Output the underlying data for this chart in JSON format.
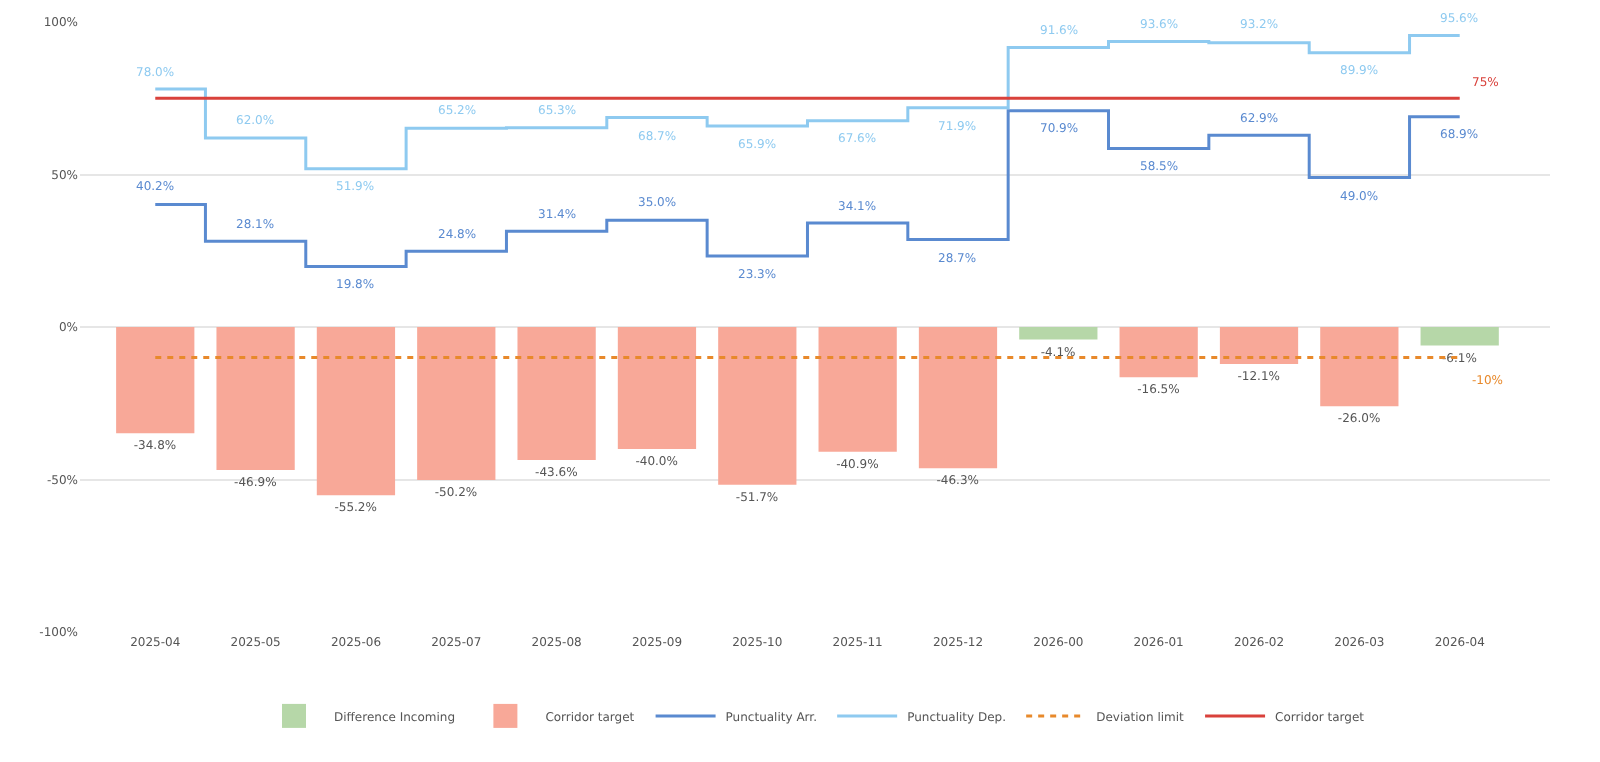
{
  "chart_data": {
    "type": "bar",
    "stacked": true,
    "categories": [
      "2025-04",
      "2025-05",
      "2025-06",
      "2025-07",
      "2025-08",
      "2025-09",
      "2025-10",
      "2025-11",
      "2025-12",
      "2026-00",
      "2026-01",
      "2026-02",
      "2026-03",
      "2026-04"
    ],
    "series": [
      {
        "name": "Difference Incoming",
        "color": "#b6d7a8",
        "values": [
          null,
          null,
          null,
          null,
          null,
          null,
          null,
          null,
          null,
          -4.1,
          null,
          null,
          null,
          -6.1
        ],
        "value_labels": [
          null,
          null,
          null,
          null,
          null,
          null,
          null,
          null,
          null,
          "-4.1%",
          null,
          null,
          null,
          "-6.1%"
        ]
      },
      {
        "name": "Corridor target",
        "color": "#f8a898",
        "values": [
          -34.8,
          -46.9,
          -55.2,
          -50.2,
          -43.6,
          -40.0,
          -51.7,
          -40.9,
          -46.3,
          null,
          -16.5,
          -12.1,
          -26.0,
          null
        ],
        "value_labels": [
          "-34.8%",
          "-46.9%",
          "-55.2%",
          "-50.2%",
          "-43.6%",
          "-40.0%",
          "-51.7%",
          "-40.9%",
          "-46.3%",
          null,
          "-16.5%",
          "-12.1%",
          "-26.0%",
          null
        ]
      },
      {
        "name": "Punctuality Arr.",
        "type": "step",
        "color": "#5a8ad0",
        "values": [
          40.2,
          28.1,
          19.8,
          24.8,
          31.4,
          35.0,
          23.3,
          34.1,
          28.7,
          70.9,
          58.5,
          62.9,
          49.0,
          68.9
        ],
        "value_labels": [
          "40.2%",
          "28.1%",
          "19.8%",
          "24.8%",
          "31.4%",
          "35.0%",
          "23.3%",
          "34.1%",
          "28.7%",
          "70.9%",
          "58.5%",
          "62.9%",
          "49.0%",
          "68.9%"
        ]
      },
      {
        "name": "Punctuality Dep.",
        "type": "step",
        "color": "#8ecaf0",
        "values": [
          78.0,
          62.0,
          51.9,
          65.2,
          65.3,
          68.7,
          65.9,
          67.6,
          71.9,
          91.6,
          93.6,
          93.2,
          89.9,
          95.6
        ],
        "value_labels": [
          "78.0%",
          "62.0%",
          "51.9%",
          "65.2%",
          "65.3%",
          "68.7%",
          "65.9%",
          "67.6%",
          "71.9%",
          "91.6%",
          "93.6%",
          "93.2%",
          "89.9%",
          "95.6%"
        ]
      },
      {
        "name": "Deviation limit",
        "type": "line",
        "color": "#e8892b",
        "line_style": "dotted",
        "values": [
          -10,
          -10,
          -10,
          -10,
          -10,
          -10,
          -10,
          -10,
          -10,
          -10,
          -10,
          -10,
          -10,
          -10
        ],
        "value_labels": [
          null,
          null,
          null,
          null,
          null,
          null,
          null,
          null,
          null,
          null,
          null,
          null,
          null,
          "-10%"
        ]
      },
      {
        "name": "Corridor target",
        "type": "line",
        "color": "#d9413b",
        "line_style": "solid",
        "values": [
          75,
          75,
          75,
          75,
          75,
          75,
          75,
          75,
          75,
          75,
          75,
          75,
          75,
          75
        ],
        "value_labels": [
          null,
          null,
          null,
          null,
          null,
          null,
          null,
          null,
          null,
          null,
          null,
          null,
          null,
          "75%"
        ]
      }
    ],
    "ylim": [
      -100,
      100
    ],
    "yticks": [
      {
        "value": -100,
        "label": "-100%"
      },
      {
        "value": -50,
        "label": "-50%"
      },
      {
        "value": 0,
        "label": "0%"
      },
      {
        "value": 50,
        "label": "50%"
      },
      {
        "value": 100,
        "label": "100%"
      }
    ],
    "grid": "y",
    "legend": "bottom",
    "marker": "none"
  }
}
